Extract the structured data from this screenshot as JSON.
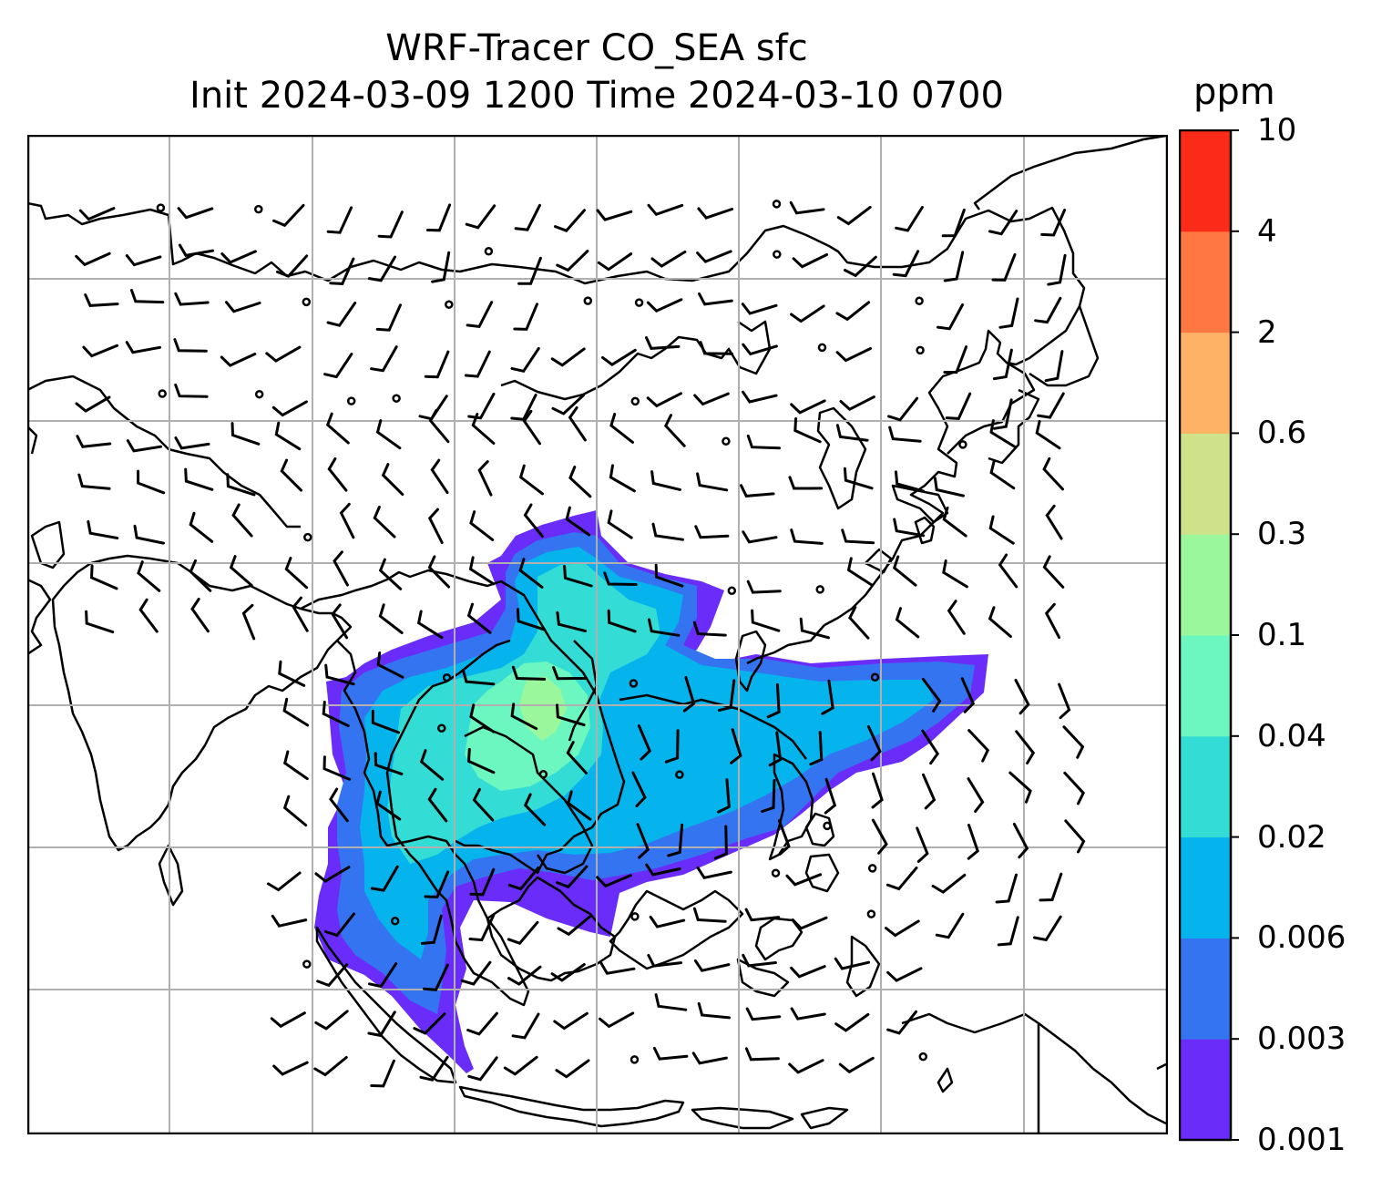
{
  "title": {
    "line1": "WRF-Tracer CO_SEA sfc",
    "line2": "Init 2024-03-09 1200 Time 2024-03-10 0700"
  },
  "colorbar": {
    "unit": "ppm",
    "levels": [
      "0.001",
      "0.003",
      "0.006",
      "0.02",
      "0.04",
      "0.1",
      "0.3",
      "0.6",
      "2",
      "4",
      "10"
    ],
    "colors": [
      "#6a2cf8",
      "#3574f0",
      "#05b4ec",
      "#33dcd4",
      "#6df7c0",
      "#9af79b",
      "#cfe189",
      "#fdb265",
      "#ff7741",
      "#fb2a19"
    ]
  },
  "map": {
    "coastline_color": "#000000",
    "grid_color": "#b0b0b0",
    "wind_barb_color": "#000000"
  }
}
